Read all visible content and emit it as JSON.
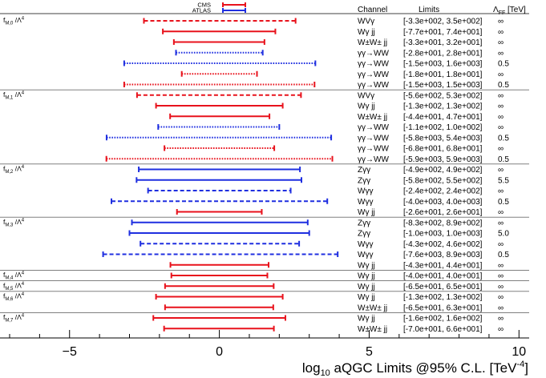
{
  "chart_data": {
    "type": "interval",
    "title": "",
    "xlabel_parts": {
      "pre": "log",
      "sub": "10",
      "mid": " aQGC Limits @95% C.L. [TeV",
      "sup": "-4",
      "post": "]"
    },
    "x_ticks": [
      "−5",
      "0",
      "5",
      "10"
    ],
    "xlim": [
      -6.5,
      10.5
    ],
    "header": {
      "channel": "Channel",
      "limits": "Limits",
      "lambda": "Λ",
      "lambda_sub": "FF",
      "lambda_unit": " [TeV]"
    },
    "legend": [
      {
        "label": "CMS",
        "color": "#e8121c"
      },
      {
        "label": "ATLAS",
        "color": "#1f2fe0"
      }
    ],
    "experiment_colors": {
      "CMS": "#e8121c",
      "ATLAS": "#1f2fe0"
    },
    "groups": [
      {
        "label": "f",
        "sub": "M,0",
        "unit": " /Λ",
        "sup": "4",
        "rows": [
          {
            "channel": "WVγ",
            "limits": "[-3.3e+002, 3.5e+002]",
            "ff": "∞",
            "lo": -330.0,
            "hi": 350.0,
            "exp": "CMS",
            "style": "dashed"
          },
          {
            "channel": "Wγ jj",
            "limits": "[-7.7e+001, 7.4e+001]",
            "ff": "∞",
            "lo": -77.0,
            "hi": 74.0,
            "exp": "CMS",
            "style": "solid"
          },
          {
            "channel": "W±W± jj",
            "limits": "[-3.3e+001, 3.2e+001]",
            "ff": "∞",
            "lo": -33.0,
            "hi": 32.0,
            "exp": "CMS",
            "style": "solid"
          },
          {
            "channel": "γγ→WW",
            "limits": "[-2.8e+001, 2.8e+001]",
            "ff": "∞",
            "lo": -28.0,
            "hi": 28.0,
            "exp": "ATLAS",
            "style": "dotted"
          },
          {
            "channel": "γγ→WW",
            "limits": "[-1.5e+003, 1.6e+003]",
            "ff": "0.5",
            "lo": -1500.0,
            "hi": 1600.0,
            "exp": "ATLAS",
            "style": "dotted"
          },
          {
            "channel": "γγ→WW",
            "limits": "[-1.8e+001, 1.8e+001]",
            "ff": "∞",
            "lo": -18.0,
            "hi": 18.0,
            "exp": "CMS",
            "style": "dotted"
          },
          {
            "channel": "γγ→WW",
            "limits": "[-1.5e+003, 1.5e+003]",
            "ff": "0.5",
            "lo": -1500.0,
            "hi": 1500.0,
            "exp": "CMS",
            "style": "dotted"
          }
        ]
      },
      {
        "label": "f",
        "sub": "M,1",
        "unit": " /Λ",
        "sup": "4",
        "rows": [
          {
            "channel": "WVγ",
            "limits": "[-5.6e+002, 5.3e+002]",
            "ff": "∞",
            "lo": -560.0,
            "hi": 530.0,
            "exp": "CMS",
            "style": "dashed"
          },
          {
            "channel": "Wγ jj",
            "limits": "[-1.3e+002, 1.3e+002]",
            "ff": "∞",
            "lo": -130.0,
            "hi": 130.0,
            "exp": "CMS",
            "style": "solid"
          },
          {
            "channel": "W±W± jj",
            "limits": "[-4.4e+001, 4.7e+001]",
            "ff": "∞",
            "lo": -44.0,
            "hi": 47.0,
            "exp": "CMS",
            "style": "solid"
          },
          {
            "channel": "γγ→WW",
            "limits": "[-1.1e+002, 1.0e+002]",
            "ff": "∞",
            "lo": -110.0,
            "hi": 100.0,
            "exp": "ATLAS",
            "style": "dotted"
          },
          {
            "channel": "γγ→WW",
            "limits": "[-5.8e+003, 5.4e+003]",
            "ff": "0.5",
            "lo": -5800.0,
            "hi": 5400.0,
            "exp": "ATLAS",
            "style": "dotted"
          },
          {
            "channel": "γγ→WW",
            "limits": "[-6.8e+001, 6.8e+001]",
            "ff": "∞",
            "lo": -68.0,
            "hi": 68.0,
            "exp": "CMS",
            "style": "dotted"
          },
          {
            "channel": "γγ→WW",
            "limits": "[-5.9e+003, 5.9e+003]",
            "ff": "0.5",
            "lo": -5900.0,
            "hi": 5900.0,
            "exp": "CMS",
            "style": "dotted"
          }
        ]
      },
      {
        "label": "f",
        "sub": "M,2",
        "unit": " /Λ",
        "sup": "4",
        "rows": [
          {
            "channel": "Zγγ",
            "limits": "[-4.9e+002, 4.9e+002]",
            "ff": "∞",
            "lo": -490.0,
            "hi": 490.0,
            "exp": "ATLAS",
            "style": "solid"
          },
          {
            "channel": "Zγγ",
            "limits": "[-5.8e+002, 5.5e+002]",
            "ff": "5.5",
            "lo": -580.0,
            "hi": 550.0,
            "exp": "ATLAS",
            "style": "solid"
          },
          {
            "channel": "Wγγ",
            "limits": "[-2.4e+002, 2.4e+002]",
            "ff": "∞",
            "lo": -240.0,
            "hi": 240.0,
            "exp": "ATLAS",
            "style": "dashed"
          },
          {
            "channel": "Wγγ",
            "limits": "[-4.0e+003, 4.0e+003]",
            "ff": "0.5",
            "lo": -4000.0,
            "hi": 4000.0,
            "exp": "ATLAS",
            "style": "dashed"
          },
          {
            "channel": "Wγ jj",
            "limits": "[-2.6e+001, 2.6e+001]",
            "ff": "∞",
            "lo": -26.0,
            "hi": 26.0,
            "exp": "CMS",
            "style": "solid"
          }
        ]
      },
      {
        "label": "f",
        "sub": "M,3",
        "unit": " /Λ",
        "sup": "4",
        "rows": [
          {
            "channel": "Zγγ",
            "limits": "[-8.3e+002, 8.9e+002]",
            "ff": "∞",
            "lo": -830.0,
            "hi": 890.0,
            "exp": "ATLAS",
            "style": "solid"
          },
          {
            "channel": "Zγγ",
            "limits": "[-1.0e+003, 1.0e+003]",
            "ff": "5.0",
            "lo": -1000.0,
            "hi": 1000.0,
            "exp": "ATLAS",
            "style": "solid"
          },
          {
            "channel": "Wγγ",
            "limits": "[-4.3e+002, 4.6e+002]",
            "ff": "∞",
            "lo": -430.0,
            "hi": 460.0,
            "exp": "ATLAS",
            "style": "dashed"
          },
          {
            "channel": "Wγγ",
            "limits": "[-7.6e+003, 8.9e+003]",
            "ff": "0.5",
            "lo": -7600.0,
            "hi": 8900.0,
            "exp": "ATLAS",
            "style": "dashed"
          },
          {
            "channel": "Wγ jj",
            "limits": "[-4.3e+001, 4.4e+001]",
            "ff": "∞",
            "lo": -43.0,
            "hi": 44.0,
            "exp": "CMS",
            "style": "solid"
          }
        ]
      },
      {
        "label": "f",
        "sub": "M,4",
        "unit": " /Λ",
        "sup": "4",
        "rows": [
          {
            "channel": "Wγ jj",
            "limits": "[-4.0e+001, 4.0e+001]",
            "ff": "∞",
            "lo": -40.0,
            "hi": 40.0,
            "exp": "CMS",
            "style": "solid"
          }
        ]
      },
      {
        "label": "f",
        "sub": "M,5",
        "unit": " /Λ",
        "sup": "4",
        "rows": [
          {
            "channel": "Wγ jj",
            "limits": "[-6.5e+001, 6.5e+001]",
            "ff": "∞",
            "lo": -65.0,
            "hi": 65.0,
            "exp": "CMS",
            "style": "solid"
          }
        ]
      },
      {
        "label": "f",
        "sub": "M,6",
        "unit": " /Λ",
        "sup": "4",
        "rows": [
          {
            "channel": "Wγ jj",
            "limits": "[-1.3e+002, 1.3e+002]",
            "ff": "∞",
            "lo": -130.0,
            "hi": 130.0,
            "exp": "CMS",
            "style": "solid"
          },
          {
            "channel": "W±W± jj",
            "limits": "[-6.5e+001, 6.3e+001]",
            "ff": "∞",
            "lo": -65.0,
            "hi": 63.0,
            "exp": "CMS",
            "style": "solid"
          }
        ]
      },
      {
        "label": "f",
        "sub": "M,7",
        "unit": " /Λ",
        "sup": "4",
        "rows": [
          {
            "channel": "Wγ jj",
            "limits": "[-1.6e+002, 1.6e+002]",
            "ff": "∞",
            "lo": -160.0,
            "hi": 160.0,
            "exp": "CMS",
            "style": "solid"
          },
          {
            "channel": "W±W± jj",
            "limits": "[-7.0e+001, 6.6e+001]",
            "ff": "∞",
            "lo": -70.0,
            "hi": 66.0,
            "exp": "CMS",
            "style": "solid"
          }
        ]
      }
    ]
  }
}
